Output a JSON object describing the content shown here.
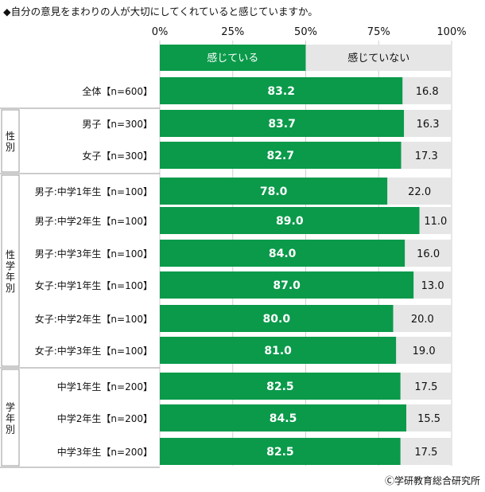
{
  "title": "◆自分の意見をまわりの人が大切にしてくれていると感じていますか。",
  "credit": "Ⓒ学研教育総合研究所",
  "colors": {
    "positive": "#0a9a4a",
    "negative": "#e6e6e6",
    "grid": "#cfcfcf",
    "frame": "#9a9a9a"
  },
  "chart_data": {
    "type": "bar",
    "orientation": "horizontal",
    "stacked": true,
    "xlim": [
      0,
      100
    ],
    "x_ticks": [
      "0%",
      "25%",
      "50%",
      "75%",
      "100%"
    ],
    "legend": [
      "感じている",
      "感じていない"
    ],
    "categories": [
      "全体【n=600】",
      "男子【n=300】",
      "女子【n=300】",
      "男子:中学1年生【n=100】",
      "男子:中学2年生【n=100】",
      "男子:中学3年生【n=100】",
      "女子:中学1年生【n=100】",
      "女子:中学2年生【n=100】",
      "女子:中学3年生【n=100】",
      "中学1年生【n=200】",
      "中学2年生【n=200】",
      "中学3年生【n=200】"
    ],
    "series": [
      {
        "name": "感じている",
        "values": [
          83.2,
          83.7,
          82.7,
          78.0,
          89.0,
          84.0,
          87.0,
          80.0,
          81.0,
          82.5,
          84.5,
          82.5
        ]
      },
      {
        "name": "感じていない",
        "values": [
          16.8,
          16.3,
          17.3,
          22.0,
          11.0,
          16.0,
          13.0,
          20.0,
          19.0,
          17.5,
          15.5,
          17.5
        ]
      }
    ],
    "groups": [
      {
        "label": "性別",
        "rows": [
          1,
          2
        ]
      },
      {
        "label": "性学年別",
        "rows": [
          3,
          8
        ]
      },
      {
        "label": "学年別",
        "rows": [
          9,
          11
        ]
      }
    ]
  }
}
